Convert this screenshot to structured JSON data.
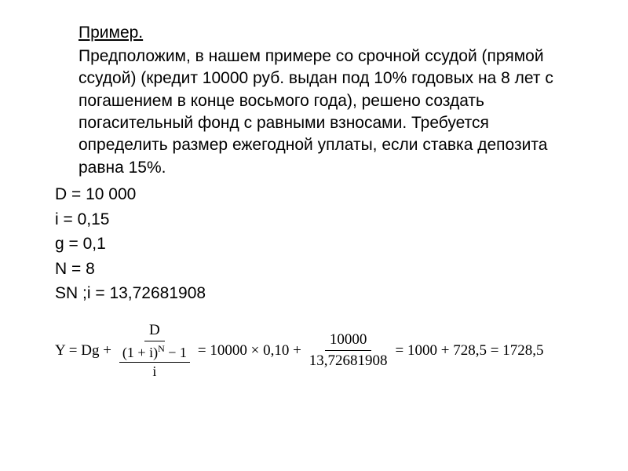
{
  "title": "Пример.",
  "problem": "Предположим, в нашем примере со срочной ссудой (прямой ссудой) (кредит 10000 руб. выдан под 10% годовых на 8 лет с погашением в конце восьмого года), решено создать погасительный фонд с равными взносами. Требуется определить размер ежегодной уплаты, если ставка депозита равна 15%.",
  "params": {
    "D": "D = 10 000",
    "i": "i = 0,15",
    "g": "g = 0,1",
    "N": "N = 8",
    "SN": "SN ;i    = 13,72681908"
  },
  "formula": {
    "lhs": "Y = Dg +",
    "frac1_num": "D",
    "frac1_den_num": "(1 + i)",
    "frac1_den_exp": "N",
    "frac1_den_tail": " − 1",
    "frac1_den_bottom": "i",
    "eq1": "= 10000 × 0,10 +",
    "frac2_num": "10000",
    "frac2_den": "13,72681908",
    "eq2": "= 1000 + 728,5 = 1728,5"
  },
  "style": {
    "background": "#ffffff",
    "text_color": "#000000",
    "title_fontsize": 21,
    "body_fontsize": 21,
    "formula_fontsize": 19
  }
}
